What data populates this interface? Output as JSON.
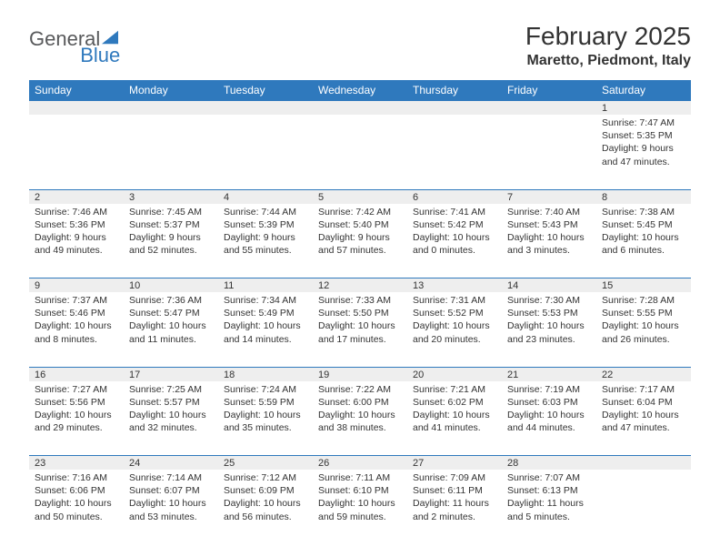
{
  "logo": {
    "text_gray": "General",
    "text_blue": "Blue"
  },
  "title": "February 2025",
  "location": "Maretto, Piedmont, Italy",
  "colors": {
    "header_bg": "#2f79bd",
    "header_text": "#ffffff",
    "daynum_bg": "#eeeeee",
    "cell_text": "#333333",
    "logo_gray": "#58595b",
    "logo_blue": "#2f79bd",
    "page_bg": "#ffffff"
  },
  "day_headers": [
    "Sunday",
    "Monday",
    "Tuesday",
    "Wednesday",
    "Thursday",
    "Friday",
    "Saturday"
  ],
  "weeks": [
    {
      "nums": [
        "",
        "",
        "",
        "",
        "",
        "",
        "1"
      ],
      "cells": [
        null,
        null,
        null,
        null,
        null,
        null,
        {
          "sunrise": "Sunrise: 7:47 AM",
          "sunset": "Sunset: 5:35 PM",
          "daylight1": "Daylight: 9 hours",
          "daylight2": "and 47 minutes."
        }
      ]
    },
    {
      "nums": [
        "2",
        "3",
        "4",
        "5",
        "6",
        "7",
        "8"
      ],
      "cells": [
        {
          "sunrise": "Sunrise: 7:46 AM",
          "sunset": "Sunset: 5:36 PM",
          "daylight1": "Daylight: 9 hours",
          "daylight2": "and 49 minutes."
        },
        {
          "sunrise": "Sunrise: 7:45 AM",
          "sunset": "Sunset: 5:37 PM",
          "daylight1": "Daylight: 9 hours",
          "daylight2": "and 52 minutes."
        },
        {
          "sunrise": "Sunrise: 7:44 AM",
          "sunset": "Sunset: 5:39 PM",
          "daylight1": "Daylight: 9 hours",
          "daylight2": "and 55 minutes."
        },
        {
          "sunrise": "Sunrise: 7:42 AM",
          "sunset": "Sunset: 5:40 PM",
          "daylight1": "Daylight: 9 hours",
          "daylight2": "and 57 minutes."
        },
        {
          "sunrise": "Sunrise: 7:41 AM",
          "sunset": "Sunset: 5:42 PM",
          "daylight1": "Daylight: 10 hours",
          "daylight2": "and 0 minutes."
        },
        {
          "sunrise": "Sunrise: 7:40 AM",
          "sunset": "Sunset: 5:43 PM",
          "daylight1": "Daylight: 10 hours",
          "daylight2": "and 3 minutes."
        },
        {
          "sunrise": "Sunrise: 7:38 AM",
          "sunset": "Sunset: 5:45 PM",
          "daylight1": "Daylight: 10 hours",
          "daylight2": "and 6 minutes."
        }
      ]
    },
    {
      "nums": [
        "9",
        "10",
        "11",
        "12",
        "13",
        "14",
        "15"
      ],
      "cells": [
        {
          "sunrise": "Sunrise: 7:37 AM",
          "sunset": "Sunset: 5:46 PM",
          "daylight1": "Daylight: 10 hours",
          "daylight2": "and 8 minutes."
        },
        {
          "sunrise": "Sunrise: 7:36 AM",
          "sunset": "Sunset: 5:47 PM",
          "daylight1": "Daylight: 10 hours",
          "daylight2": "and 11 minutes."
        },
        {
          "sunrise": "Sunrise: 7:34 AM",
          "sunset": "Sunset: 5:49 PM",
          "daylight1": "Daylight: 10 hours",
          "daylight2": "and 14 minutes."
        },
        {
          "sunrise": "Sunrise: 7:33 AM",
          "sunset": "Sunset: 5:50 PM",
          "daylight1": "Daylight: 10 hours",
          "daylight2": "and 17 minutes."
        },
        {
          "sunrise": "Sunrise: 7:31 AM",
          "sunset": "Sunset: 5:52 PM",
          "daylight1": "Daylight: 10 hours",
          "daylight2": "and 20 minutes."
        },
        {
          "sunrise": "Sunrise: 7:30 AM",
          "sunset": "Sunset: 5:53 PM",
          "daylight1": "Daylight: 10 hours",
          "daylight2": "and 23 minutes."
        },
        {
          "sunrise": "Sunrise: 7:28 AM",
          "sunset": "Sunset: 5:55 PM",
          "daylight1": "Daylight: 10 hours",
          "daylight2": "and 26 minutes."
        }
      ]
    },
    {
      "nums": [
        "16",
        "17",
        "18",
        "19",
        "20",
        "21",
        "22"
      ],
      "cells": [
        {
          "sunrise": "Sunrise: 7:27 AM",
          "sunset": "Sunset: 5:56 PM",
          "daylight1": "Daylight: 10 hours",
          "daylight2": "and 29 minutes."
        },
        {
          "sunrise": "Sunrise: 7:25 AM",
          "sunset": "Sunset: 5:57 PM",
          "daylight1": "Daylight: 10 hours",
          "daylight2": "and 32 minutes."
        },
        {
          "sunrise": "Sunrise: 7:24 AM",
          "sunset": "Sunset: 5:59 PM",
          "daylight1": "Daylight: 10 hours",
          "daylight2": "and 35 minutes."
        },
        {
          "sunrise": "Sunrise: 7:22 AM",
          "sunset": "Sunset: 6:00 PM",
          "daylight1": "Daylight: 10 hours",
          "daylight2": "and 38 minutes."
        },
        {
          "sunrise": "Sunrise: 7:21 AM",
          "sunset": "Sunset: 6:02 PM",
          "daylight1": "Daylight: 10 hours",
          "daylight2": "and 41 minutes."
        },
        {
          "sunrise": "Sunrise: 7:19 AM",
          "sunset": "Sunset: 6:03 PM",
          "daylight1": "Daylight: 10 hours",
          "daylight2": "and 44 minutes."
        },
        {
          "sunrise": "Sunrise: 7:17 AM",
          "sunset": "Sunset: 6:04 PM",
          "daylight1": "Daylight: 10 hours",
          "daylight2": "and 47 minutes."
        }
      ]
    },
    {
      "nums": [
        "23",
        "24",
        "25",
        "26",
        "27",
        "28",
        ""
      ],
      "cells": [
        {
          "sunrise": "Sunrise: 7:16 AM",
          "sunset": "Sunset: 6:06 PM",
          "daylight1": "Daylight: 10 hours",
          "daylight2": "and 50 minutes."
        },
        {
          "sunrise": "Sunrise: 7:14 AM",
          "sunset": "Sunset: 6:07 PM",
          "daylight1": "Daylight: 10 hours",
          "daylight2": "and 53 minutes."
        },
        {
          "sunrise": "Sunrise: 7:12 AM",
          "sunset": "Sunset: 6:09 PM",
          "daylight1": "Daylight: 10 hours",
          "daylight2": "and 56 minutes."
        },
        {
          "sunrise": "Sunrise: 7:11 AM",
          "sunset": "Sunset: 6:10 PM",
          "daylight1": "Daylight: 10 hours",
          "daylight2": "and 59 minutes."
        },
        {
          "sunrise": "Sunrise: 7:09 AM",
          "sunset": "Sunset: 6:11 PM",
          "daylight1": "Daylight: 11 hours",
          "daylight2": "and 2 minutes."
        },
        {
          "sunrise": "Sunrise: 7:07 AM",
          "sunset": "Sunset: 6:13 PM",
          "daylight1": "Daylight: 11 hours",
          "daylight2": "and 5 minutes."
        },
        null
      ]
    }
  ]
}
